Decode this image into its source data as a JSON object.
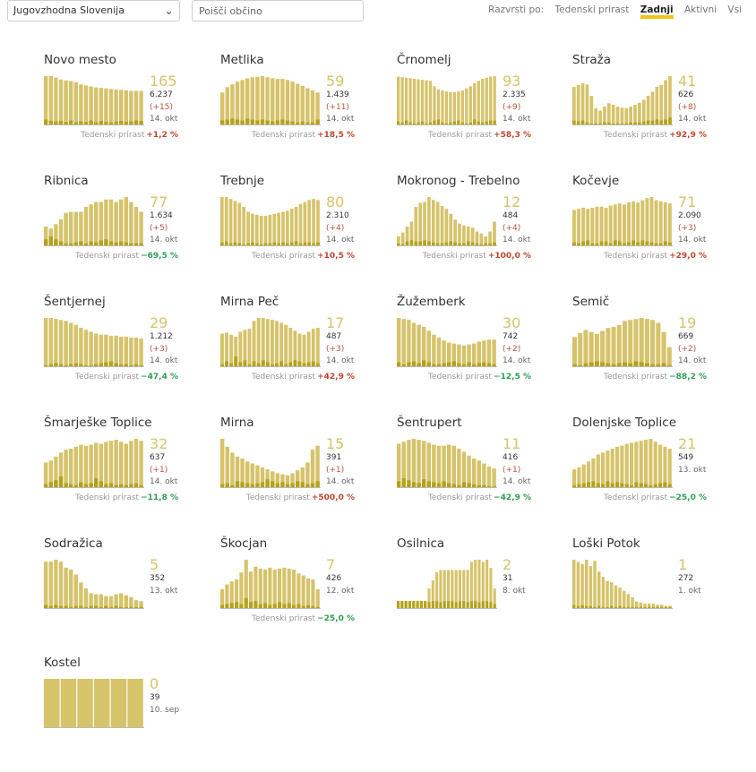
{
  "topbar": {
    "region": "Jugovzhodna Slovenija",
    "search_placeholder": "Poišči občino",
    "sort_label": "Razvrsti po:",
    "sort_options": [
      "Tedenski prirast",
      "Zadnji",
      "Aktivni",
      "Vsi"
    ],
    "sort_active": "Zadnji"
  },
  "growth_label": "Tedenski prirast",
  "colors": {
    "bar": "#d6c36a",
    "bar_dark": "#b5a21b",
    "accent": "#f0c419",
    "positive": "#c0462f",
    "negative": "#2f9e55"
  },
  "municipalities": [
    {
      "name": "Novo mesto",
      "active": "165",
      "total": "6.237",
      "delta": "(+15)",
      "date": "14. okt",
      "growth": "+1,2 %",
      "trend": "pos",
      "chart_data": {
        "type": "bar",
        "active": [
          100,
          100,
          97,
          93,
          91,
          90,
          88,
          83,
          81,
          79,
          77,
          76,
          75,
          74,
          73,
          72,
          71,
          70,
          70,
          70
        ],
        "new": [
          12,
          9,
          8,
          9,
          7,
          10,
          6,
          8,
          7,
          10,
          6,
          9,
          7,
          6,
          8,
          9,
          7,
          8,
          10,
          9
        ]
      }
    },
    {
      "name": "Metlika",
      "active": "59",
      "total": "1.439",
      "delta": "(+11)",
      "date": "14. okt",
      "growth": "+18,5 %",
      "trend": "pos",
      "chart_data": {
        "type": "bar",
        "active": [
          60,
          70,
          75,
          80,
          83,
          86,
          88,
          89,
          90,
          88,
          86,
          85,
          85,
          83,
          80,
          76,
          72,
          68,
          64,
          60
        ],
        "new": [
          10,
          12,
          14,
          12,
          10,
          14,
          12,
          10,
          12,
          10,
          8,
          10,
          12,
          10,
          8,
          6,
          8,
          6,
          6,
          12
        ]
      }
    },
    {
      "name": "Črnomelj",
      "active": "93",
      "total": "2.335",
      "delta": "(+9)",
      "date": "14. okt",
      "growth": "+58,3 %",
      "trend": "pos",
      "chart_data": {
        "type": "bar",
        "active": [
          92,
          91,
          90,
          89,
          88,
          87,
          86,
          85,
          84,
          74,
          68,
          66,
          64,
          63,
          63,
          64,
          66,
          70,
          74,
          80,
          84,
          88,
          90,
          92,
          93
        ],
        "new": [
          8,
          6,
          10,
          6,
          4,
          6,
          8,
          4,
          6,
          10,
          12,
          6,
          4,
          6,
          8,
          10,
          6,
          4,
          6,
          12,
          8,
          6,
          8,
          10,
          10
        ]
      }
    },
    {
      "name": "Straža",
      "active": "41",
      "total": "626",
      "delta": "(+8)",
      "date": "14. okt",
      "growth": "+92,9 %",
      "trend": "pos",
      "chart_data": {
        "type": "bar",
        "active": [
          78,
          82,
          86,
          83,
          60,
          35,
          30,
          38,
          45,
          42,
          38,
          36,
          35,
          38,
          42,
          46,
          52,
          60,
          68,
          78,
          82,
          92,
          100
        ],
        "new": [
          10,
          8,
          10,
          6,
          4,
          4,
          4,
          6,
          6,
          4,
          4,
          4,
          4,
          6,
          6,
          6,
          8,
          10,
          10,
          12,
          10,
          12,
          16
        ]
      }
    },
    {
      "name": "Ribnica",
      "active": "77",
      "total": "1.634",
      "delta": "(+5)",
      "date": "14. okt",
      "growth": "−69,5 %",
      "trend": "neg",
      "chart_data": {
        "type": "bar",
        "active": [
          40,
          36,
          45,
          55,
          68,
          70,
          70,
          70,
          80,
          85,
          90,
          90,
          95,
          95,
          90,
          95,
          100,
          90,
          80,
          70
        ],
        "new": [
          14,
          20,
          14,
          10,
          6,
          6,
          8,
          10,
          6,
          10,
          8,
          12,
          14,
          10,
          8,
          10,
          8,
          6,
          6,
          6
        ]
      }
    },
    {
      "name": "Trebnje",
      "active": "80",
      "total": "2.310",
      "delta": "(+4)",
      "date": "14. okt",
      "growth": "+10,5 %",
      "trend": "pos",
      "chart_data": {
        "type": "bar",
        "active": [
          100,
          100,
          96,
          92,
          88,
          80,
          70,
          66,
          64,
          62,
          62,
          64,
          66,
          68,
          70,
          72,
          76,
          80,
          86,
          90,
          94,
          96,
          94
        ],
        "new": [
          8,
          10,
          6,
          8,
          6,
          4,
          6,
          8,
          6,
          4,
          6,
          6,
          8,
          6,
          8,
          6,
          8,
          10,
          6,
          8,
          8,
          6,
          8
        ]
      }
    },
    {
      "name": "Mokronog - Trebelno",
      "active": "12",
      "total": "484",
      "delta": "(+4)",
      "date": "14. okt",
      "growth": "+100,0 %",
      "trend": "pos",
      "chart_data": {
        "type": "bar",
        "active": [
          20,
          28,
          40,
          50,
          80,
          88,
          90,
          100,
          94,
          90,
          82,
          76,
          66,
          54,
          46,
          42,
          40,
          38,
          30,
          26,
          20,
          30,
          50
        ],
        "new": [
          6,
          4,
          10,
          12,
          10,
          10,
          12,
          10,
          8,
          6,
          6,
          8,
          10,
          8,
          6,
          6,
          10,
          8,
          6,
          4,
          6,
          6,
          8
        ]
      }
    },
    {
      "name": "Kočevje",
      "active": "71",
      "total": "2.090",
      "delta": "(+3)",
      "date": "14. okt",
      "growth": "+29,0 %",
      "trend": "pos",
      "chart_data": {
        "type": "bar",
        "active": [
          68,
          70,
          72,
          70,
          72,
          74,
          74,
          72,
          76,
          78,
          80,
          78,
          82,
          84,
          82,
          86,
          90,
          92,
          86,
          84,
          82,
          80
        ],
        "new": [
          8,
          6,
          10,
          12,
          6,
          6,
          10,
          10,
          6,
          12,
          10,
          6,
          8,
          12,
          8,
          12,
          10,
          8,
          6,
          6,
          10,
          8
        ]
      }
    },
    {
      "name": "Šentjernej",
      "active": "29",
      "total": "1.212",
      "delta": "(+3)",
      "date": "14. okt",
      "growth": "−47,4 %",
      "trend": "neg",
      "chart_data": {
        "type": "bar",
        "active": [
          100,
          100,
          98,
          96,
          94,
          90,
          86,
          80,
          76,
          72,
          68,
          66,
          66,
          64,
          64,
          62,
          62,
          60,
          60,
          58
        ],
        "new": [
          4,
          6,
          8,
          6,
          4,
          6,
          8,
          6,
          4,
          4,
          6,
          8,
          10,
          12,
          8,
          6,
          6,
          4,
          6,
          4
        ]
      }
    },
    {
      "name": "Mirna Peč",
      "active": "17",
      "total": "487",
      "delta": "(+3)",
      "date": "14. okt",
      "growth": "+42,9 %",
      "trend": "pos",
      "chart_data": {
        "type": "bar",
        "active": [
          68,
          70,
          66,
          62,
          72,
          76,
          78,
          94,
          100,
          100,
          98,
          96,
          94,
          90,
          86,
          80,
          74,
          68,
          66,
          72,
          78,
          80
        ],
        "new": [
          6,
          12,
          8,
          22,
          10,
          14,
          6,
          12,
          8,
          14,
          10,
          6,
          8,
          12,
          6,
          10,
          14,
          12,
          8,
          10,
          12,
          8
        ]
      }
    },
    {
      "name": "Žužemberk",
      "active": "30",
      "total": "742",
      "delta": "(+2)",
      "date": "14. okt",
      "growth": "−12,5 %",
      "trend": "neg",
      "chart_data": {
        "type": "bar",
        "active": [
          100,
          98,
          96,
          90,
          86,
          82,
          74,
          66,
          60,
          54,
          50,
          48,
          46,
          44,
          46,
          48,
          52,
          54,
          56,
          56
        ],
        "new": [
          10,
          6,
          10,
          12,
          8,
          14,
          10,
          6,
          6,
          8,
          10,
          12,
          8,
          6,
          10,
          6,
          8,
          10,
          8,
          6
        ]
      }
    },
    {
      "name": "Semič",
      "active": "19",
      "total": "669",
      "delta": "(+2)",
      "date": "14. okt",
      "growth": "−88,2 %",
      "trend": "neg",
      "chart_data": {
        "type": "bar",
        "active": [
          60,
          68,
          74,
          70,
          66,
          72,
          78,
          80,
          84,
          92,
          94,
          96,
          98,
          96,
          94,
          88,
          70,
          40
        ],
        "new": [
          6,
          4,
          8,
          10,
          12,
          10,
          8,
          6,
          8,
          10,
          8,
          12,
          10,
          8,
          6,
          6,
          8,
          4
        ]
      }
    },
    {
      "name": "Šmarješke Toplice",
      "active": "32",
      "total": "637",
      "delta": "(+1)",
      "date": "14. okt",
      "growth": "−11,8 %",
      "trend": "neg",
      "chart_data": {
        "type": "bar",
        "active": [
          52,
          56,
          64,
          72,
          78,
          80,
          84,
          88,
          86,
          88,
          92,
          90,
          94,
          96,
          98,
          94,
          90,
          96,
          100,
          96
        ],
        "new": [
          8,
          12,
          16,
          24,
          10,
          8,
          6,
          12,
          8,
          10,
          20,
          14,
          8,
          10,
          6,
          8,
          6,
          8,
          10,
          6
        ]
      }
    },
    {
      "name": "Mirna",
      "active": "15",
      "total": "391",
      "delta": "(+1)",
      "date": "14. okt",
      "growth": "+500,0 %",
      "trend": "pos",
      "chart_data": {
        "type": "bar",
        "active": [
          100,
          84,
          72,
          64,
          60,
          54,
          50,
          46,
          42,
          38,
          34,
          30,
          28,
          26,
          30,
          36,
          42,
          52,
          78,
          86
        ],
        "new": [
          8,
          10,
          6,
          14,
          12,
          10,
          8,
          10,
          12,
          18,
          14,
          10,
          12,
          8,
          10,
          14,
          12,
          8,
          10,
          14
        ]
      }
    },
    {
      "name": "Šentrupert",
      "active": "11",
      "total": "416",
      "delta": "(+1)",
      "date": "14. okt",
      "growth": "−42,9 %",
      "trend": "neg",
      "chart_data": {
        "type": "bar",
        "active": [
          90,
          94,
          98,
          100,
          98,
          96,
          92,
          88,
          86,
          86,
          88,
          86,
          80,
          74,
          66,
          60,
          56,
          50,
          44,
          40
        ],
        "new": [
          14,
          20,
          16,
          12,
          10,
          18,
          14,
          12,
          10,
          14,
          10,
          8,
          6,
          12,
          10,
          8,
          6,
          6,
          4,
          4
        ]
      }
    },
    {
      "name": "Dolenjske Toplice",
      "active": "21",
      "total": "549",
      "delta": null,
      "date": "13. okt",
      "growth": "−25,0 %",
      "trend": "neg",
      "chart_data": {
        "type": "bar",
        "active": [
          38,
          42,
          48,
          54,
          60,
          68,
          72,
          76,
          80,
          84,
          86,
          90,
          92,
          94,
          96,
          98,
          100,
          94,
          88,
          84,
          80
        ],
        "new": [
          6,
          8,
          10,
          12,
          14,
          10,
          8,
          14,
          10,
          12,
          10,
          8,
          6,
          12,
          10,
          8,
          6,
          8,
          10,
          12,
          8
        ]
      }
    },
    {
      "name": "Sodražica",
      "active": "5",
      "total": "352",
      "delta": null,
      "date": "13. okt",
      "growth": null,
      "trend": null,
      "chart_data": {
        "type": "bar",
        "active": [
          96,
          96,
          100,
          96,
          84,
          80,
          70,
          54,
          42,
          32,
          30,
          30,
          26,
          26,
          30,
          32,
          28,
          24,
          18,
          16
        ],
        "new": [
          8,
          6,
          8,
          6,
          6,
          4,
          6,
          6,
          4,
          6,
          6,
          4,
          6,
          4,
          6,
          4,
          4,
          4,
          4,
          4
        ]
      }
    },
    {
      "name": "Škocjan",
      "active": "7",
      "total": "426",
      "delta": null,
      "date": "12. okt",
      "growth": "−25,0 %",
      "trend": "neg",
      "chart_data": {
        "type": "bar",
        "active": [
          40,
          50,
          56,
          60,
          74,
          100,
          76,
          86,
          82,
          80,
          84,
          80,
          82,
          84,
          82,
          80,
          72,
          68,
          62,
          60,
          40
        ],
        "new": [
          8,
          10,
          12,
          14,
          10,
          22,
          14,
          16,
          10,
          12,
          8,
          10,
          14,
          10,
          12,
          8,
          10,
          6,
          8,
          6,
          4
        ]
      }
    },
    {
      "name": "Osilnica",
      "active": "2",
      "total": "31",
      "delta": null,
      "date": "8. okt",
      "growth": null,
      "trend": null,
      "chart_data": {
        "type": "bar",
        "active": [
          16,
          16,
          16,
          16,
          16,
          16,
          16,
          16,
          40,
          56,
          72,
          76,
          76,
          76,
          76,
          76,
          76,
          76,
          76,
          92,
          96,
          96,
          92,
          96,
          80,
          40
        ],
        "new": [
          16,
          16,
          16,
          16,
          16,
          16,
          16,
          16,
          14,
          16,
          16,
          14,
          16,
          16,
          16,
          14,
          16,
          16,
          14,
          16,
          16,
          14,
          16,
          16,
          14,
          10
        ]
      }
    },
    {
      "name": "Loški Potok",
      "active": "1",
      "total": "272",
      "delta": null,
      "date": "1. okt",
      "growth": null,
      "trend": null,
      "chart_data": {
        "type": "bar",
        "active": [
          92,
          88,
          84,
          92,
          80,
          90,
          70,
          60,
          52,
          50,
          44,
          40,
          34,
          28,
          22,
          14,
          12,
          10,
          10,
          10,
          8,
          8,
          6,
          6
        ],
        "new": [
          8,
          6,
          8,
          6,
          6,
          4,
          6,
          4,
          4,
          6,
          4,
          6,
          4,
          4,
          4,
          4,
          4,
          4,
          4,
          4,
          4,
          4,
          4,
          4
        ]
      }
    },
    {
      "name": "Kostel",
      "active": "0",
      "total": "39",
      "delta": null,
      "date": "10. sep",
      "growth": null,
      "trend": null,
      "chart_data": {
        "type": "bar",
        "active": [
          100,
          100,
          100,
          100,
          100,
          100
        ],
        "new": [
          0,
          0,
          0,
          0,
          0,
          0
        ]
      }
    }
  ]
}
